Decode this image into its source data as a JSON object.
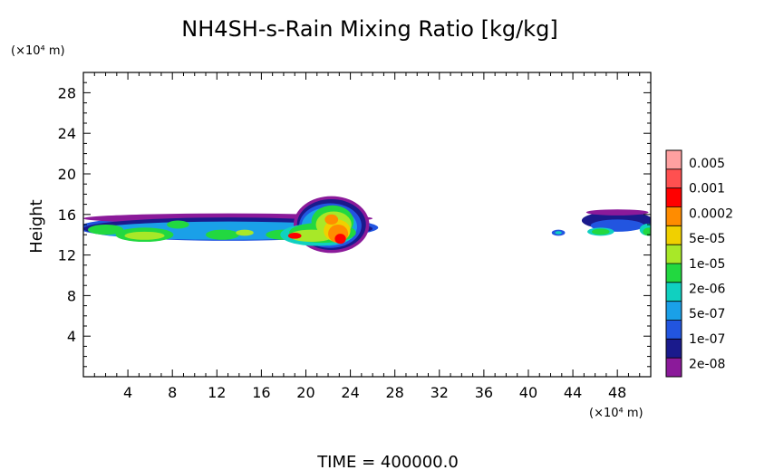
{
  "chart_data": {
    "type": "heatmap",
    "title": "NH4SH-s-Rain Mixing Ratio [kg/kg]",
    "xlabel": "",
    "ylabel": "Height",
    "x_unit": "(×10⁴ m)",
    "y_unit": "(×10⁴ m)",
    "xlim": [
      0,
      51
    ],
    "ylim": [
      0,
      30
    ],
    "x_ticks": [
      4,
      8,
      12,
      16,
      20,
      24,
      28,
      32,
      36,
      40,
      44,
      48
    ],
    "y_ticks": [
      4,
      8,
      12,
      16,
      20,
      24,
      28
    ],
    "x_tick_labels": [
      "4",
      "8",
      "12",
      "16",
      "20",
      "24",
      "28",
      "32",
      "36",
      "40",
      "44",
      "48"
    ],
    "y_tick_labels": [
      "4",
      "8",
      "12",
      "16",
      "20",
      "24",
      "28"
    ],
    "colorbar": {
      "labels": [
        "0.005",
        "0.001",
        "0.0002",
        "5e-05",
        "1e-05",
        "2e-06",
        "5e-07",
        "1e-07",
        "2e-08"
      ],
      "colors": [
        "#8b1a9a",
        "#1a1a8c",
        "#2255e0",
        "#1aa0e8",
        "#10d0c0",
        "#22d840",
        "#a8e828",
        "#f0d000",
        "#ff8c00",
        "#ff0000",
        "#ff5050",
        "#ffa0a0"
      ]
    },
    "cloud_regions": [
      {
        "x": [
          0,
          26
        ],
        "y": [
          13,
          16
        ],
        "peak_x": 23,
        "peak_y": 14,
        "peak_value": "0.001"
      },
      {
        "x": [
          45,
          51
        ],
        "y": [
          14,
          16.5
        ],
        "peak_value": "1e-05"
      },
      {
        "x": [
          42,
          43.5
        ],
        "y": [
          14,
          14.5
        ],
        "peak_value": "5e-07"
      }
    ],
    "grid": false
  },
  "footer": {
    "time_label": "TIME = 400000.0"
  }
}
